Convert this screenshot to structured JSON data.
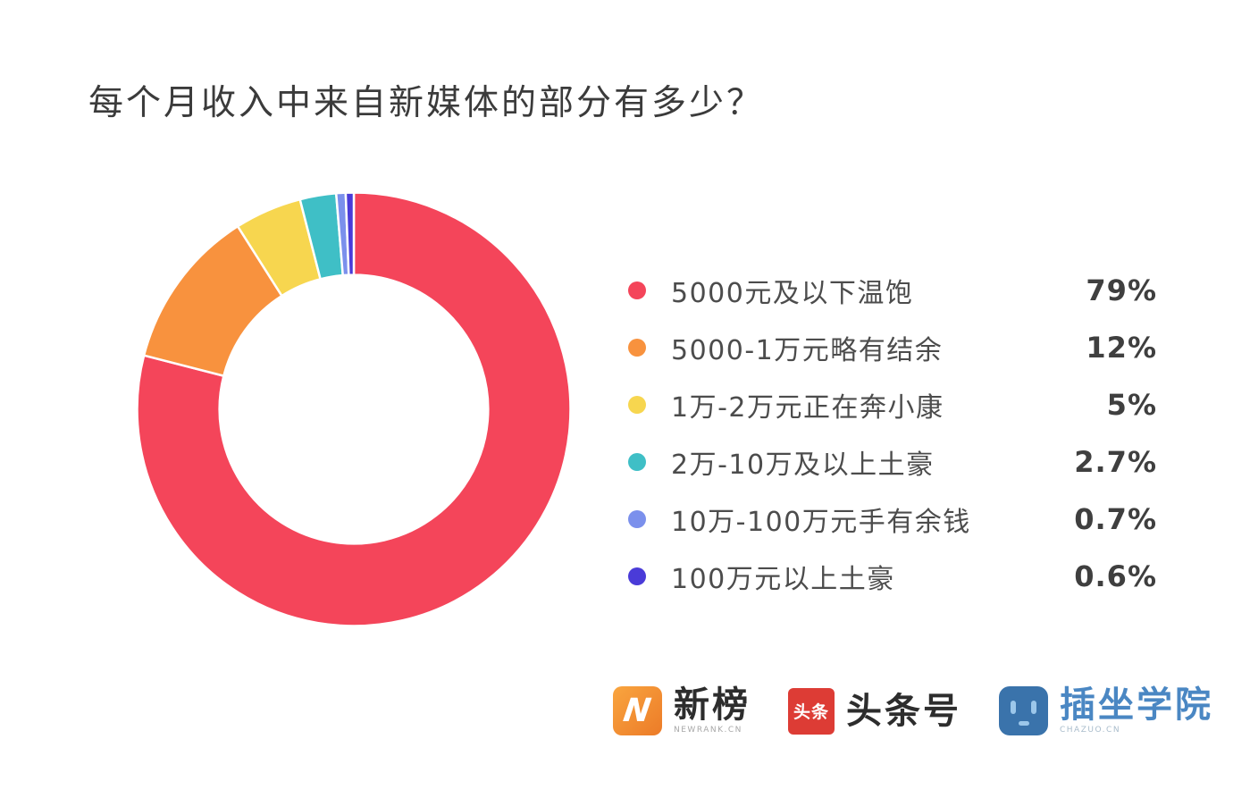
{
  "title": "每个月收入中来自新媒体的部分有多少？",
  "chart_data": {
    "type": "pie",
    "subtype": "donut",
    "title": "每个月收入中来自新媒体的部分有多少？",
    "categories": [
      "5000元及以下温饱",
      "5000-1万元略有结余",
      "1万-2万元正在奔小康",
      "2万-10万及以上土豪",
      "10万-100万元手有余钱",
      "100万元以上土豪"
    ],
    "values": [
      79,
      12,
      5,
      2.7,
      0.7,
      0.6
    ],
    "value_labels": [
      "79%",
      "12%",
      "5%",
      "2.7%",
      "0.7%",
      "0.6%"
    ],
    "colors": [
      "#f4455a",
      "#f8923e",
      "#f7d64f",
      "#3fbfc6",
      "#7b90ec",
      "#4a3bd8"
    ],
    "legend_position": "right",
    "start_angle_deg": 0,
    "direction": "clockwise",
    "inner_radius_ratio": 0.62,
    "slice_gap_stroke": "#ffffff"
  },
  "legend": {
    "items": [
      {
        "label": "5000元及以下温饱",
        "value": "79%",
        "color": "#f4455a"
      },
      {
        "label": "5000-1万元略有结余",
        "value": "12%",
        "color": "#f8923e"
      },
      {
        "label": "1万-2万元正在奔小康",
        "value": "5%",
        "color": "#f7d64f"
      },
      {
        "label": "2万-10万及以上土豪",
        "value": "2.7%",
        "color": "#3fbfc6"
      },
      {
        "label": "10万-100万元手有余钱",
        "value": "0.7%",
        "color": "#7b90ec"
      },
      {
        "label": "100万元以上土豪",
        "value": "0.6%",
        "color": "#4a3bd8"
      }
    ]
  },
  "footer": {
    "logos": [
      {
        "name": "newrank",
        "icon_text": "N",
        "label": "新榜",
        "sublabel": "NEWRANK.CN",
        "icon_color_start": "#f9a53f",
        "icon_color_end": "#ec7b28"
      },
      {
        "name": "toutiao",
        "icon_text": "头条",
        "label": "头条号",
        "sublabel": "",
        "icon_color": "#dd3c35"
      },
      {
        "name": "chazuo",
        "icon_text": "",
        "label": "插坐学院",
        "sublabel": "CHAZUO.CN",
        "icon_color": "#3a73ab",
        "label_color": "#4a87c3"
      }
    ]
  }
}
